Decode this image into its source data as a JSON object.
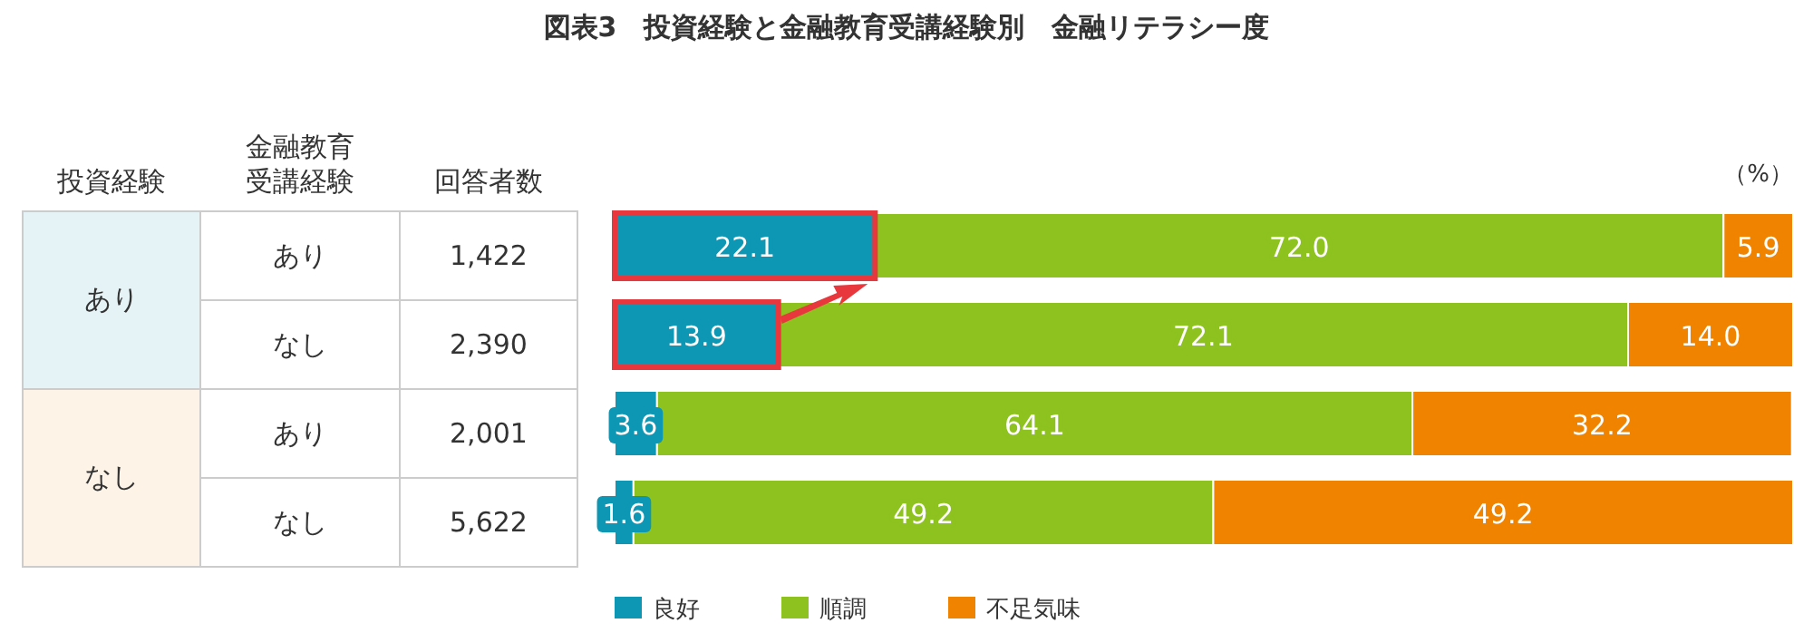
{
  "chart_data": [
    {
      "type": "other",
      "annotations": [
        "投資経験",
        "金融教育受講経験",
        "回答者数",
        "あり",
        "なし",
        "あり",
        "1,422",
        "なし",
        "2,390",
        "あり",
        "2,001",
        "なし",
        "5,622"
      ]
    },
    {
      "type": "bar",
      "title": "図表3　投資経験と金融教育受講経験別　金融リテラシー度",
      "orientation": "horizontal",
      "stacked": true,
      "categories": [
        null,
        null,
        null,
        null
      ],
      "xlim": [
        0,
        100
      ],
      "legend": "bottom",
      "annotations": [
        "（%）"
      ],
      "series": [
        {
          "name": "良好",
          "color": "#0e97b4",
          "values": [
            22.1,
            13.9,
            3.6,
            1.6
          ],
          "value_labels": [
            "22.1",
            "13.9",
            "3.6",
            "1.6"
          ]
        },
        {
          "name": "順調",
          "color": "#8dc21f",
          "values": [
            72.0,
            72.1,
            64.1,
            49.2
          ],
          "value_labels": [
            "72.0",
            "72.1",
            "64.1",
            "49.2"
          ]
        },
        {
          "name": "不足気味",
          "color": "#f08300",
          "values": [
            5.9,
            14.0,
            32.2,
            49.2
          ],
          "value_labels": [
            "5.9",
            "14.0",
            "32.2",
            "49.2"
          ]
        }
      ]
    }
  ]
}
